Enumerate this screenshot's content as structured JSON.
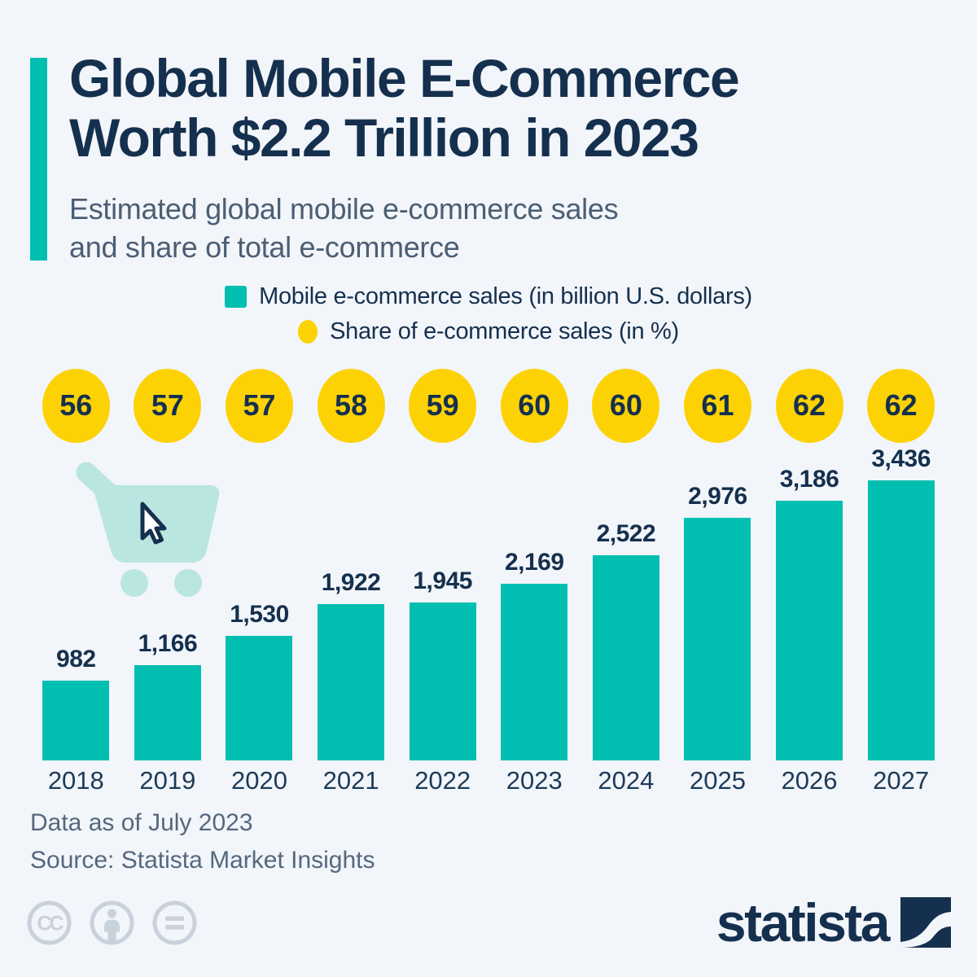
{
  "header": {
    "title_line1": "Global Mobile E-Commerce",
    "title_line2": "Worth $2.2 Trillion in 2023",
    "subtitle_line1": "Estimated global mobile e-commerce sales",
    "subtitle_line2": "and share of total e-commerce"
  },
  "legend": {
    "bars": "Mobile e-commerce sales (in billion U.S. dollars)",
    "share": "Share of e-commerce sales (in %)"
  },
  "chart_data": {
    "type": "bar",
    "title": "Global Mobile E-Commerce Worth $2.2 Trillion in 2023",
    "categories": [
      "2018",
      "2019",
      "2020",
      "2021",
      "2022",
      "2023",
      "2024",
      "2025",
      "2026",
      "2027"
    ],
    "series": [
      {
        "name": "Mobile e-commerce sales (in billion U.S. dollars)",
        "type": "bar",
        "color": "#00bfb0",
        "values": [
          982,
          1166,
          1530,
          1922,
          1945,
          2169,
          2522,
          2976,
          3186,
          3436
        ]
      },
      {
        "name": "Share of e-commerce sales (in %)",
        "type": "point",
        "color": "#fdd205",
        "values": [
          56,
          57,
          57,
          58,
          59,
          60,
          60,
          61,
          62,
          62
        ]
      }
    ],
    "xlabel": "",
    "ylabel": "Mobile e-commerce sales (in billion U.S. dollars)",
    "ylim": [
      0,
      3600
    ],
    "grid": false,
    "legend_position": "top",
    "value_labels_visible": true
  },
  "footer": {
    "note": "Data as of July 2023",
    "source": "Source: Statista Market Insights"
  },
  "branding": {
    "logo_text": "statista",
    "license_icons": [
      "creative-commons",
      "attribution",
      "no-derivatives"
    ]
  },
  "colors": {
    "background": "#f2f5f9",
    "bar": "#00bfb0",
    "share_circle": "#fdd205",
    "navy": "#15304e",
    "subtitle": "#4b5e74",
    "footer_text": "#54687f",
    "cart": "#b9e6e1",
    "license_gray": "#c9d2dc"
  }
}
